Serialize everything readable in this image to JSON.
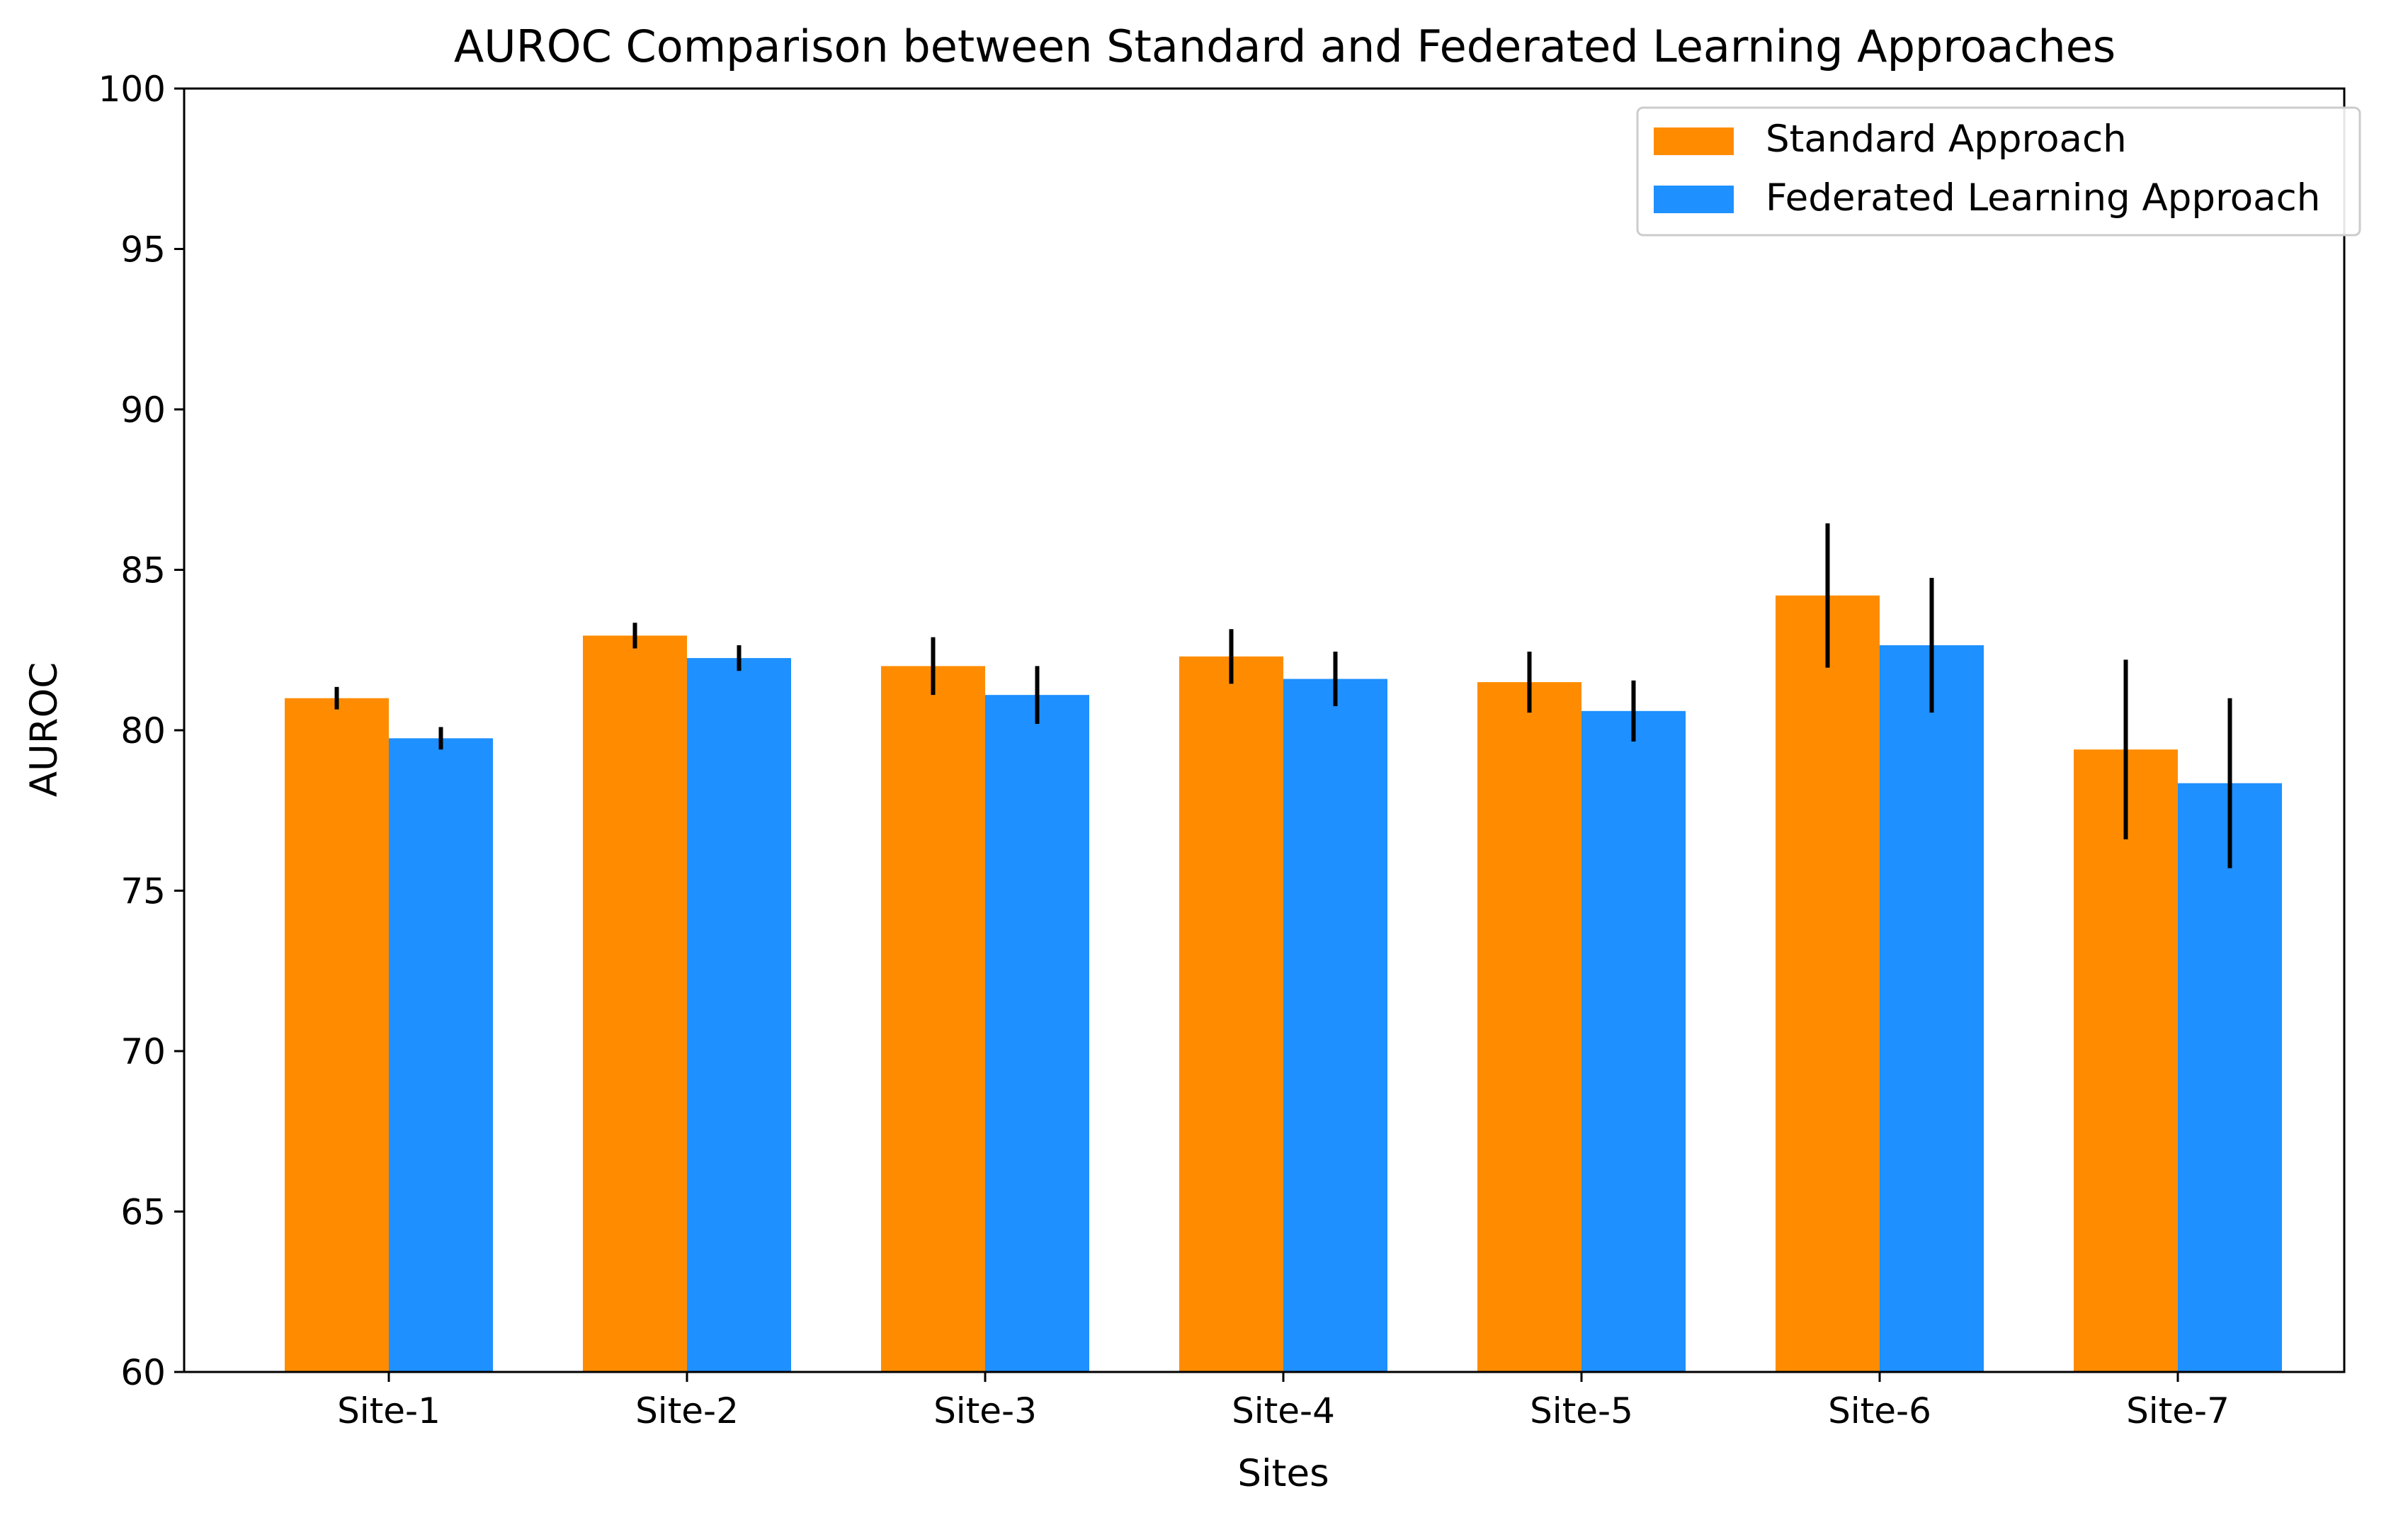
{
  "chart_data": {
    "type": "bar",
    "title": "AUROC Comparison between Standard and Federated Learning Approaches",
    "xlabel": "Sites",
    "ylabel": "AUROC",
    "ylim": [
      60,
      100
    ],
    "yticks": [
      "60",
      "65",
      "70",
      "75",
      "80",
      "85",
      "90",
      "95",
      "100"
    ],
    "categories": [
      "Site-1",
      "Site-2",
      "Site-3",
      "Site-4",
      "Site-5",
      "Site-6",
      "Site-7"
    ],
    "series": [
      {
        "name": "Standard Approach",
        "color": "#FF8C00",
        "values": [
          81.0,
          82.95,
          82.0,
          82.3,
          81.5,
          84.2,
          79.4
        ],
        "errors": [
          0.35,
          0.4,
          0.9,
          0.85,
          0.95,
          2.25,
          2.8
        ]
      },
      {
        "name": "Federated Learning Approach",
        "color": "#1E90FF",
        "values": [
          79.75,
          82.25,
          81.1,
          81.6,
          80.6,
          82.65,
          78.35
        ],
        "errors": [
          0.35,
          0.4,
          0.9,
          0.85,
          0.95,
          2.1,
          2.65
        ]
      }
    ],
    "grid": false,
    "legend_position": "top-right",
    "errorbar_color": "#000000"
  }
}
